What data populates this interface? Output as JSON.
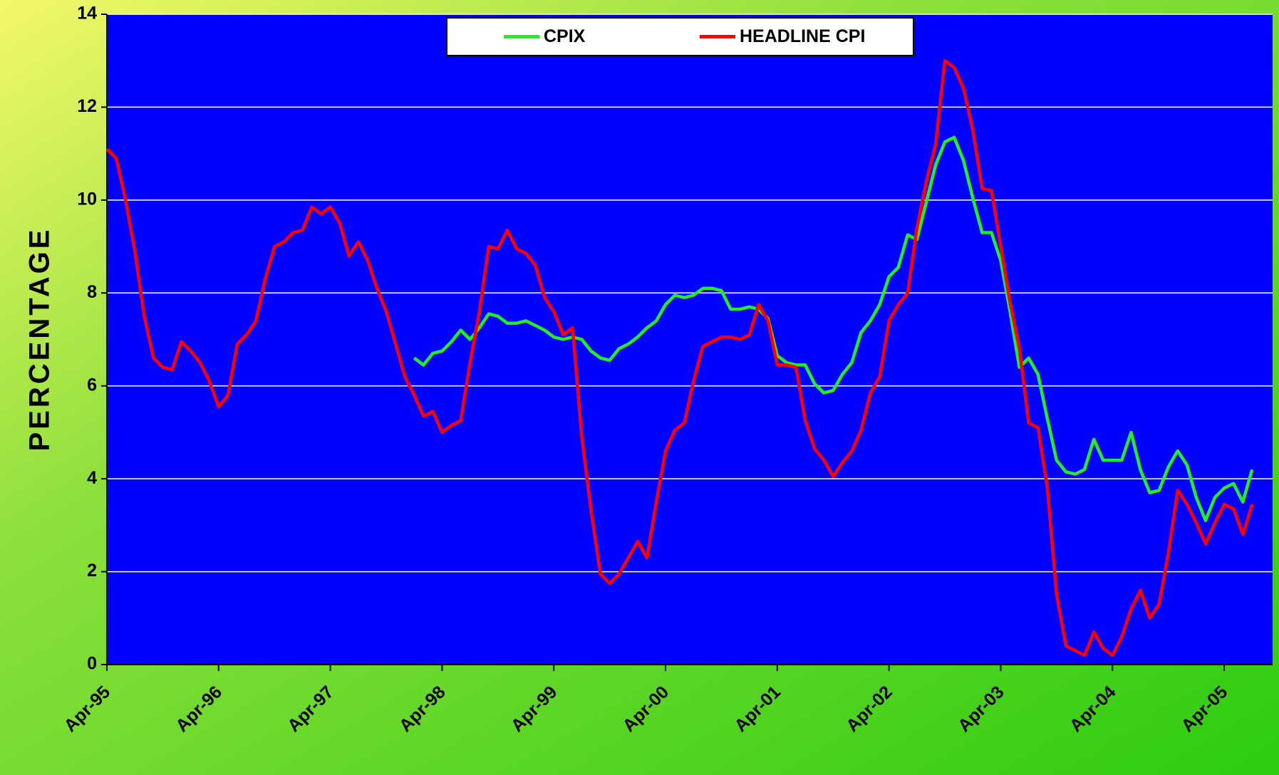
{
  "chart_data": {
    "type": "line",
    "axis_label": "PERCENTAGE",
    "categories": [
      "Apr-95",
      null,
      null,
      null,
      null,
      null,
      null,
      null,
      null,
      null,
      null,
      null,
      "Apr-96",
      null,
      null,
      null,
      null,
      null,
      null,
      null,
      null,
      null,
      null,
      null,
      "Apr-97",
      null,
      null,
      null,
      null,
      null,
      null,
      null,
      null,
      null,
      null,
      null,
      "Apr-98",
      null,
      null,
      null,
      null,
      null,
      null,
      null,
      null,
      null,
      null,
      null,
      "Apr-99",
      null,
      null,
      null,
      null,
      null,
      null,
      null,
      null,
      null,
      null,
      null,
      "Apr-00",
      null,
      null,
      null,
      null,
      null,
      null,
      null,
      null,
      null,
      null,
      null,
      "Apr-01",
      null,
      null,
      null,
      null,
      null,
      null,
      null,
      null,
      null,
      null,
      null,
      "Apr-02",
      null,
      null,
      null,
      null,
      null,
      null,
      null,
      null,
      null,
      null,
      null,
      "Apr-03",
      null,
      null,
      null,
      null,
      null,
      null,
      null,
      null,
      null,
      null,
      null,
      "Apr-04",
      null,
      null,
      null,
      null,
      null,
      null,
      null,
      null,
      null,
      null,
      null,
      "Apr-05",
      null,
      null,
      null
    ],
    "series": [
      {
        "name": "CPIX",
        "color": "#22ee22",
        "values": [
          null,
          null,
          null,
          null,
          null,
          null,
          null,
          null,
          null,
          null,
          null,
          null,
          null,
          null,
          null,
          null,
          null,
          null,
          null,
          null,
          null,
          null,
          null,
          null,
          null,
          null,
          null,
          null,
          null,
          null,
          null,
          null,
          null,
          6.6,
          6.45,
          6.7,
          6.75,
          6.95,
          7.2,
          7.0,
          7.25,
          7.55,
          7.5,
          7.35,
          7.35,
          7.4,
          7.3,
          7.2,
          7.05,
          7.0,
          7.05,
          7.0,
          6.75,
          6.6,
          6.55,
          6.8,
          6.9,
          7.05,
          7.25,
          7.4,
          7.75,
          7.95,
          7.9,
          7.95,
          8.1,
          8.1,
          8.05,
          7.65,
          7.65,
          7.7,
          7.65,
          7.45,
          6.65,
          6.5,
          6.45,
          6.45,
          6.05,
          5.85,
          5.9,
          6.25,
          6.5,
          7.15,
          7.4,
          7.75,
          8.35,
          8.55,
          9.25,
          9.15,
          9.95,
          10.75,
          11.25,
          11.35,
          10.85,
          10.05,
          9.3,
          9.3,
          8.7,
          7.6,
          6.4,
          6.6,
          6.25,
          5.3,
          4.4,
          4.15,
          4.1,
          4.2,
          4.85,
          4.4,
          4.4,
          4.4,
          5.0,
          4.2,
          3.7,
          3.75,
          4.25,
          4.6,
          4.3,
          3.6,
          3.1,
          3.6,
          3.8,
          3.9,
          3.5,
          4.2
        ]
      },
      {
        "name": "HEADLINE CPI",
        "color": "#ff0000",
        "values": [
          11.1,
          10.9,
          10.0,
          8.9,
          7.5,
          6.6,
          6.4,
          6.35,
          6.95,
          6.75,
          6.5,
          6.1,
          5.55,
          5.8,
          6.9,
          7.1,
          7.4,
          8.3,
          9.0,
          9.1,
          9.3,
          9.35,
          9.85,
          9.7,
          9.85,
          9.5,
          8.8,
          9.1,
          8.7,
          8.1,
          7.6,
          6.9,
          6.2,
          5.8,
          5.35,
          5.45,
          5.0,
          5.15,
          5.25,
          6.5,
          7.6,
          9.0,
          8.95,
          9.35,
          8.95,
          8.85,
          8.6,
          7.9,
          7.6,
          7.1,
          7.25,
          4.9,
          3.3,
          1.95,
          1.75,
          1.95,
          2.3,
          2.65,
          2.3,
          3.5,
          4.6,
          5.05,
          5.2,
          6.1,
          6.85,
          6.95,
          7.05,
          7.05,
          7.0,
          7.1,
          7.75,
          7.4,
          6.45,
          6.45,
          6.4,
          5.25,
          4.65,
          4.4,
          4.05,
          4.35,
          4.6,
          5.05,
          5.85,
          6.2,
          7.4,
          7.75,
          8.0,
          9.4,
          10.4,
          11.2,
          13.0,
          12.85,
          12.4,
          11.5,
          10.25,
          10.2,
          9.0,
          7.8,
          6.8,
          5.2,
          5.1,
          3.8,
          1.5,
          0.4,
          0.3,
          0.2,
          0.7,
          0.35,
          0.2,
          0.6,
          1.2,
          1.6,
          1.0,
          1.3,
          2.4,
          3.75,
          3.45,
          3.05,
          2.6,
          3.05,
          3.45,
          3.35,
          2.8,
          3.45
        ]
      }
    ],
    "ylim": [
      0,
      14
    ],
    "yticks": [
      0,
      2,
      4,
      6,
      8,
      10,
      12,
      14
    ],
    "grid": true,
    "legend": "top"
  }
}
